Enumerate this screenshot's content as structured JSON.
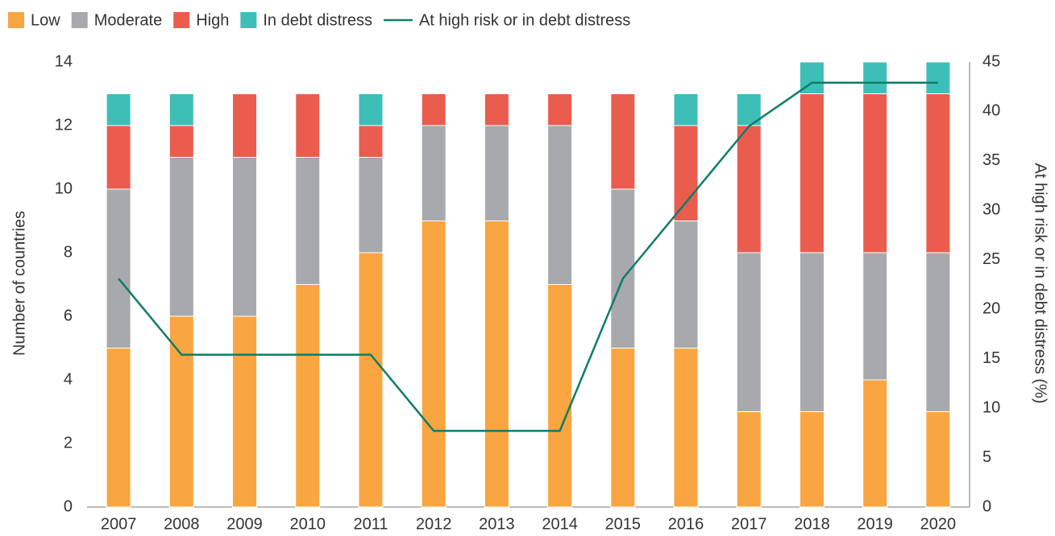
{
  "chart_data": {
    "type": "stacked_bar_line",
    "ylabel": "Number of countries",
    "y2label": "At high risk or in debt distress (%)",
    "categories": [
      "2007",
      "2008",
      "2009",
      "2010",
      "2011",
      "2012",
      "2013",
      "2014",
      "2015",
      "2016",
      "2017",
      "2018",
      "2019",
      "2020"
    ],
    "series": [
      {
        "name": "Low",
        "color": "#f9a541",
        "values": [
          5,
          6,
          6,
          7,
          8,
          9,
          9,
          7,
          5,
          5,
          3,
          3,
          4,
          3
        ]
      },
      {
        "name": "Moderate",
        "color": "#a7a9ac",
        "values": [
          5,
          5,
          5,
          4,
          3,
          3,
          3,
          5,
          5,
          4,
          5,
          5,
          4,
          5
        ]
      },
      {
        "name": "High",
        "color": "#ea5d4e",
        "values": [
          2,
          1,
          2,
          2,
          1,
          1,
          1,
          1,
          3,
          3,
          4,
          5,
          5,
          5
        ]
      },
      {
        "name": "In debt distress",
        "color": "#3dbfb8",
        "values": [
          1,
          1,
          0,
          0,
          1,
          0,
          0,
          0,
          0,
          1,
          1,
          1,
          1,
          1
        ]
      },
      {
        "name": "At high risk or in debt distress",
        "color": "#0f7c68",
        "axis": "y2",
        "type": "line",
        "values": [
          23.1,
          15.4,
          15.4,
          15.4,
          15.4,
          7.7,
          7.7,
          7.7,
          23.1,
          30.8,
          38.5,
          42.9,
          42.9,
          42.9
        ]
      }
    ],
    "ylim": [
      0,
      14
    ],
    "yticks": [
      0,
      2,
      4,
      6,
      8,
      10,
      12,
      14
    ],
    "y2lim": [
      0,
      45
    ],
    "y2ticks": [
      0,
      5,
      10,
      15,
      20,
      25,
      30,
      35,
      40,
      45
    ]
  }
}
